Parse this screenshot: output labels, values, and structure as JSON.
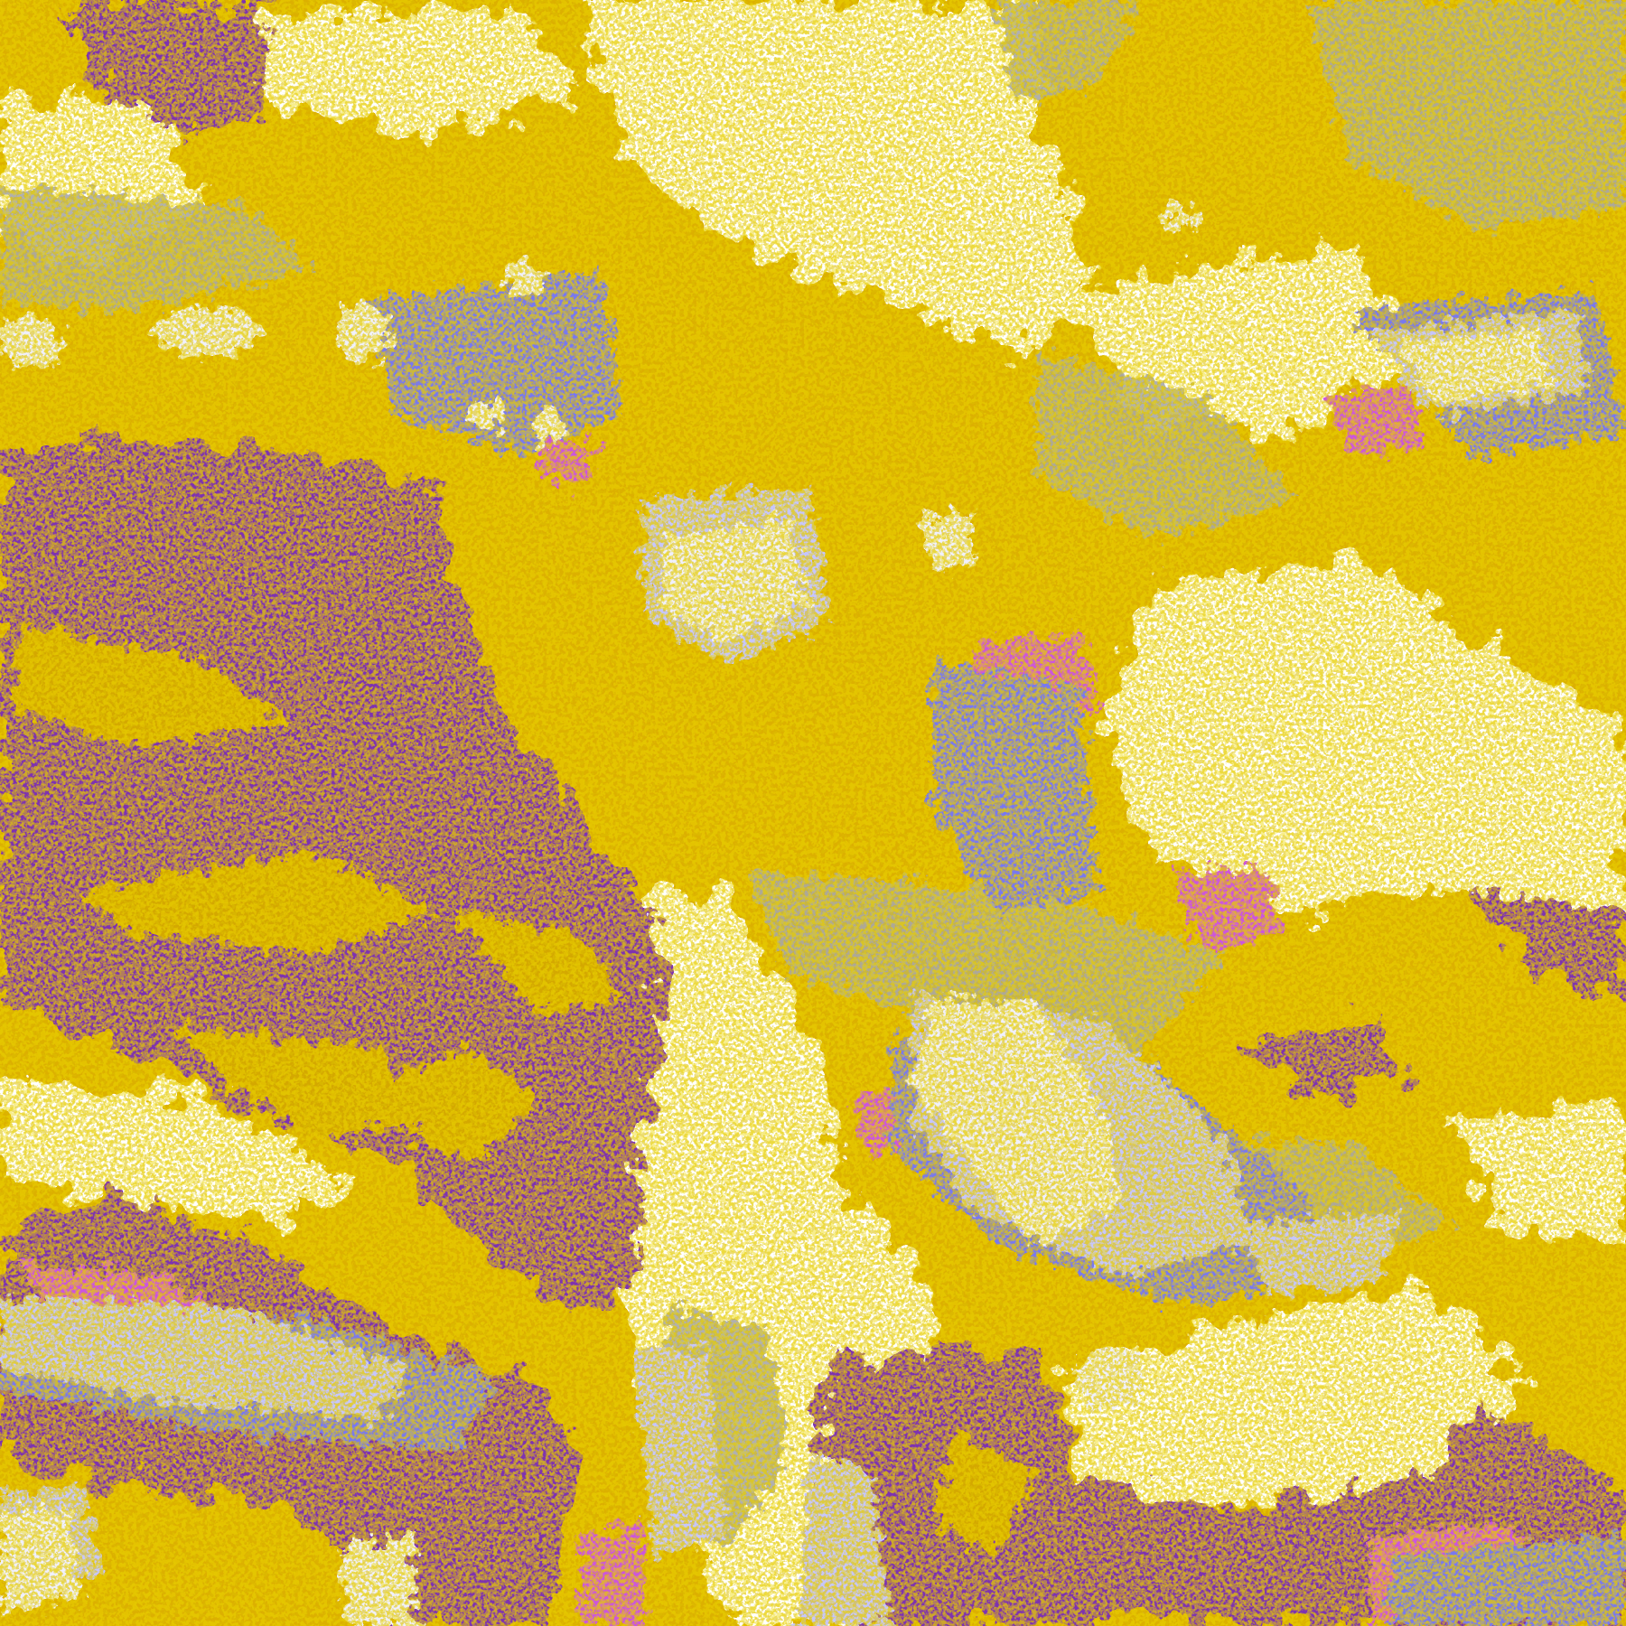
{
  "image": {
    "kind": "false-color satellite cloud imagery",
    "palette": {
      "deep_purple": "#7e32b0",
      "gold": "#dcb000",
      "dark_gold": "#b88600",
      "gray": "#9a9a9a",
      "light_gray": "#c4c4c4",
      "periwinkle": "#7878f0",
      "lavender": "#c6c6ff",
      "pale": "#f0f0ff",
      "magenta": "#cc55dd",
      "white": "#ffffff"
    }
  }
}
